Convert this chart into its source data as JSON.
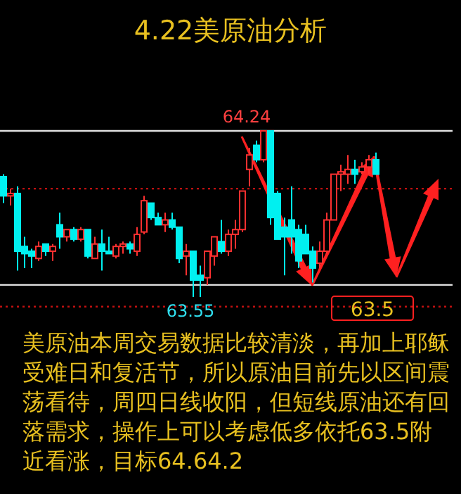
{
  "chart_data": {
    "type": "candlestick",
    "title": "4.22美原油分析",
    "categories": [
      null,
      null,
      null,
      null,
      null,
      null,
      null,
      null,
      null,
      null,
      null,
      null,
      null,
      null,
      null,
      null,
      null,
      null,
      null,
      null,
      null,
      null,
      null,
      null,
      null,
      null,
      null,
      null,
      null,
      null,
      null,
      null,
      null,
      null,
      null,
      null,
      null,
      null,
      null,
      null,
      null,
      null,
      null,
      null,
      null,
      null,
      null,
      null,
      null,
      null,
      null,
      null,
      null,
      null
    ],
    "ohlc": [
      [
        64.05,
        64.06,
        63.94,
        63.97
      ],
      [
        63.97,
        64.0,
        63.93,
        63.98
      ],
      [
        63.98,
        64.01,
        63.66,
        63.74
      ],
      [
        63.76,
        63.8,
        63.67,
        63.73
      ],
      [
        63.74,
        63.75,
        63.67,
        63.72
      ],
      [
        63.71,
        63.78,
        63.7,
        63.76
      ],
      [
        63.77,
        63.77,
        63.72,
        63.74
      ],
      [
        63.74,
        63.77,
        63.7,
        63.76
      ],
      [
        63.85,
        63.9,
        63.75,
        63.8
      ],
      [
        63.8,
        63.83,
        63.78,
        63.83
      ],
      [
        63.83,
        63.84,
        63.78,
        63.79
      ],
      [
        63.79,
        63.84,
        63.78,
        63.83
      ],
      [
        63.83,
        63.83,
        63.71,
        63.72
      ],
      [
        63.71,
        63.8,
        63.71,
        63.77
      ],
      [
        63.77,
        63.83,
        63.66,
        63.74
      ],
      [
        63.74,
        63.8,
        63.73,
        63.73
      ],
      [
        63.72,
        63.77,
        63.71,
        63.76
      ],
      [
        63.76,
        63.78,
        63.73,
        63.77
      ],
      [
        63.77,
        63.78,
        63.73,
        63.75
      ],
      [
        63.74,
        63.84,
        63.72,
        63.81
      ],
      [
        63.82,
        63.97,
        63.81,
        63.95
      ],
      [
        63.94,
        63.94,
        63.87,
        63.88
      ],
      [
        63.88,
        63.9,
        63.85,
        63.85
      ],
      [
        63.85,
        63.9,
        63.82,
        63.87
      ],
      [
        63.87,
        63.9,
        63.83,
        63.84
      ],
      [
        63.84,
        63.84,
        63.69,
        63.71
      ],
      [
        63.72,
        63.77,
        63.64,
        63.74
      ],
      [
        63.74,
        63.74,
        63.55,
        63.62
      ],
      [
        63.64,
        63.68,
        63.55,
        63.62
      ],
      [
        63.63,
        63.74,
        63.6,
        63.74
      ],
      [
        63.72,
        63.8,
        63.68,
        63.8
      ],
      [
        63.78,
        63.87,
        63.73,
        63.74
      ],
      [
        63.74,
        63.83,
        63.72,
        63.81
      ],
      [
        63.81,
        63.87,
        63.75,
        63.83
      ],
      [
        63.83,
        63.99,
        63.82,
        63.99
      ],
      [
        64.08,
        64.17,
        64.01,
        64.14
      ],
      [
        64.18,
        64.2,
        64.11,
        64.12
      ],
      [
        64.12,
        64.24,
        64.11,
        64.24
      ],
      [
        64.24,
        64.24,
        63.85,
        63.88
      ],
      [
        63.98,
        63.99,
        63.79,
        63.79
      ],
      [
        63.84,
        63.88,
        63.64,
        63.8
      ],
      [
        63.87,
        64.01,
        63.73,
        63.8
      ],
      [
        63.83,
        63.85,
        63.67,
        63.7
      ],
      [
        63.81,
        63.85,
        63.73,
        63.73
      ],
      [
        63.74,
        63.76,
        63.61,
        63.67
      ],
      [
        63.69,
        63.78,
        63.67,
        63.74
      ],
      [
        63.74,
        63.9,
        63.73,
        63.87
      ],
      [
        63.87,
        64.06,
        63.87,
        64.06
      ],
      [
        64.06,
        64.1,
        63.99,
        64.07
      ],
      [
        64.06,
        64.14,
        64.02,
        64.08
      ],
      [
        64.08,
        64.12,
        64.02,
        64.06
      ],
      [
        64.07,
        64.11,
        64.06,
        64.09
      ],
      [
        64.09,
        64.14,
        64.06,
        64.12
      ],
      [
        64.12,
        64.15,
        64.06,
        64.06
      ]
    ],
    "colors": [
      "#00f0f0",
      "#ff3030",
      "#00f0f0",
      "#00f0f0",
      "#00f0f0",
      "#ff3030",
      "#00f0f0",
      "#ff3030",
      "#00f0f0",
      "#ff3030",
      "#00f0f0",
      "#ff3030",
      "#00f0f0",
      "#ff3030",
      "#00f0f0",
      "#00f0f0",
      "#ff3030",
      "#ff3030",
      "#00f0f0",
      "#ff3030",
      "#ff3030",
      "#00f0f0",
      "#00f0f0",
      "#ff3030",
      "#00f0f0",
      "#00f0f0",
      "#ff3030",
      "#00f0f0",
      "#00f0f0",
      "#ff3030",
      "#ff3030",
      "#00f0f0",
      "#ff3030",
      "#ff3030",
      "#ff3030",
      "#ff3030",
      "#00f0f0",
      "#ff3030",
      "#00f0f0",
      "#00f0f0",
      "#00f0f0",
      "#00f0f0",
      "#00f0f0",
      "#00f0f0",
      "#00f0f0",
      "#ff3030",
      "#ff3030",
      "#ff3030",
      "#ff3030",
      "#ff3030",
      "#00f0f0",
      "#ff3030",
      "#ff3030",
      "#00f0f0"
    ],
    "ref_lines": [
      {
        "axis": "y",
        "value": 64.24,
        "color": "#e0e0e0",
        "line_style": "solid"
      },
      {
        "axis": "y",
        "value": 63.6,
        "color": "#e0e0e0",
        "line_style": "solid"
      },
      {
        "axis": "y",
        "value": 64.0,
        "color": "#c01010",
        "line_style": "dotted"
      },
      {
        "axis": "y",
        "value": 63.51,
        "color": "#c01010",
        "line_style": "dotted"
      }
    ],
    "annotations": [
      {
        "text": "64.24",
        "y": 64.24
      },
      {
        "text": "63.55",
        "y": 63.55
      },
      {
        "text": "63.5",
        "y": 63.5
      },
      "美原油本周交易数据比较清淡，再加上耶稣受难日和复活节，所以原油目前先以区间震荡看待，周四日线收阳，但短线原油还有回落需求，操作上可以考虑低多依托63.5附近看涨，目标64.64.2"
    ]
  }
}
